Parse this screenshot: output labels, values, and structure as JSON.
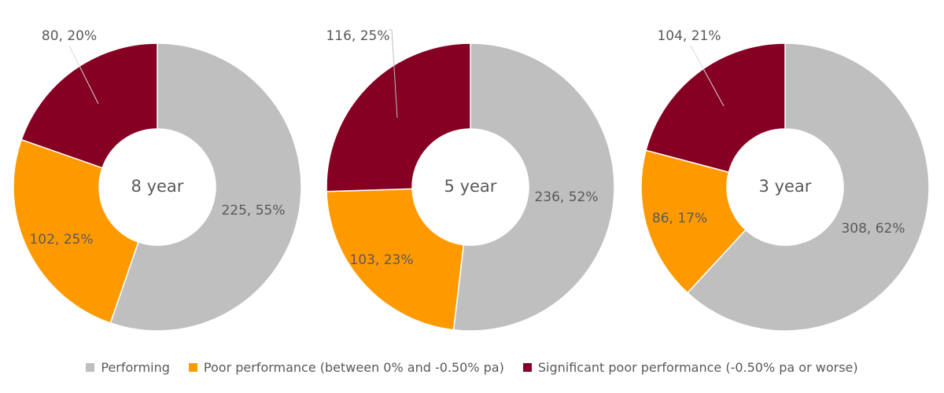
{
  "chart_data": [
    {
      "type": "pie",
      "center_label": "8 year",
      "slices": [
        {
          "series": "Performing",
          "value": 225,
          "percent": 55,
          "label": "225, 55%"
        },
        {
          "series": "Poor performance (between 0% and -0.50% pa)",
          "value": 102,
          "percent": 25,
          "label": "102, 25%"
        },
        {
          "series": "Significant poor performance (-0.50% pa or worse)",
          "value": 80,
          "percent": 20,
          "label": "80, 20%"
        }
      ]
    },
    {
      "type": "pie",
      "center_label": "5 year",
      "slices": [
        {
          "series": "Performing",
          "value": 236,
          "percent": 52,
          "label": "236, 52%"
        },
        {
          "series": "Poor performance (between 0% and -0.50% pa)",
          "value": 103,
          "percent": 23,
          "label": "103, 23%"
        },
        {
          "series": "Significant poor performance (-0.50% pa or worse)",
          "value": 116,
          "percent": 25,
          "label": "116, 25%"
        }
      ]
    },
    {
      "type": "pie",
      "center_label": "3 year",
      "slices": [
        {
          "series": "Performing",
          "value": 308,
          "percent": 62,
          "label": "308, 62%"
        },
        {
          "series": "Poor performance (between 0% and -0.50% pa)",
          "value": 86,
          "percent": 17,
          "label": "86, 17%"
        },
        {
          "series": "Significant poor performance (-0.50% pa or worse)",
          "value": 104,
          "percent": 21,
          "label": "104, 21%"
        }
      ]
    }
  ],
  "legend": {
    "items": [
      {
        "label": "Performing",
        "color": "#BFBFBF"
      },
      {
        "label": "Poor performance (between 0% and -0.50% pa)",
        "color": "#FF9900"
      },
      {
        "label": "Significant poor performance (-0.50% pa or worse)",
        "color": "#850022"
      }
    ]
  }
}
